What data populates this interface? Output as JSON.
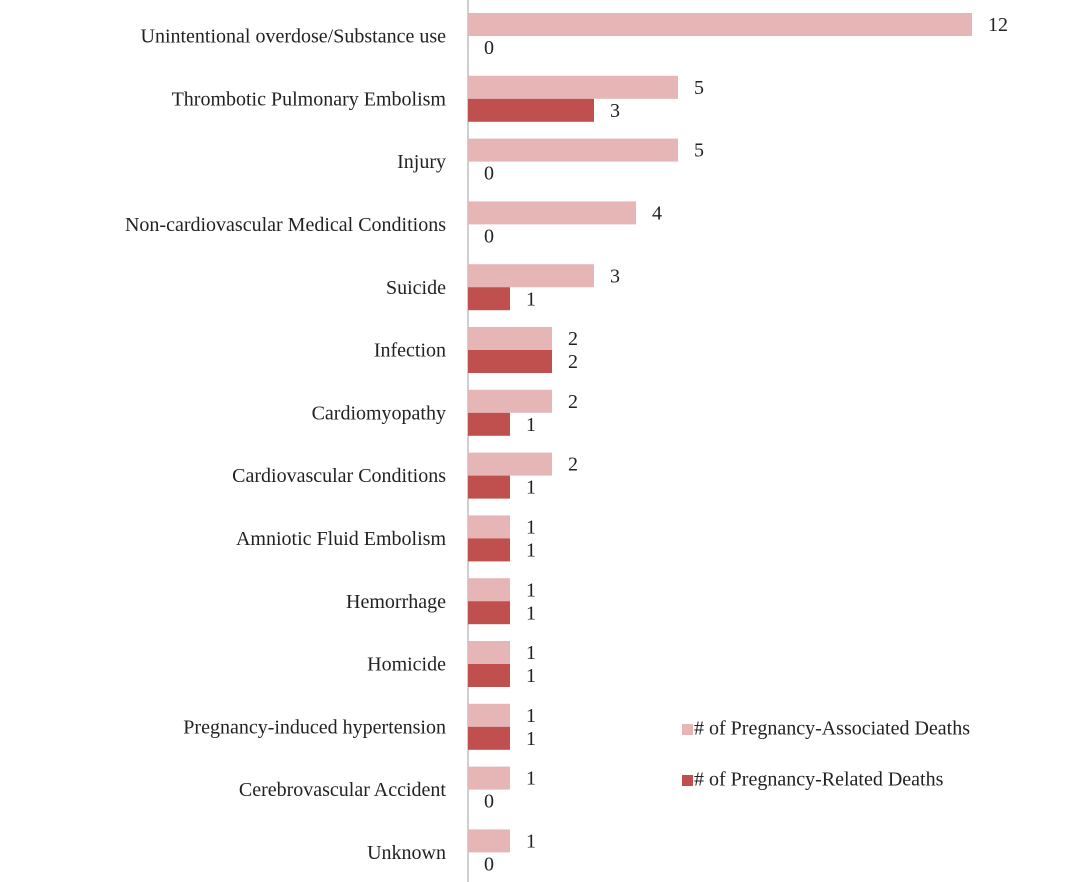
{
  "chart_data": {
    "type": "hbar",
    "categories": [
      "Unintentional overdose/Substance use",
      "Thrombotic Pulmonary Embolism",
      "Injury",
      "Non-cardiovascular Medical Conditions",
      "Suicide",
      "Infection",
      "Cardiomyopathy",
      "Cardiovascular Conditions",
      "Amniotic Fluid Embolism",
      "Hemorrhage",
      "Homicide",
      "Pregnancy-induced hypertension",
      "Cerebrovascular Accident",
      "Unknown"
    ],
    "series": [
      {
        "name": "# of Pregnancy-Associated Deaths",
        "color": "#e6b6b7",
        "values": [
          12,
          5,
          5,
          4,
          3,
          2,
          2,
          2,
          1,
          1,
          1,
          1,
          1,
          1
        ]
      },
      {
        "name": "# of Pregnancy-Related Deaths",
        "color": "#c0504d",
        "values": [
          0,
          3,
          0,
          0,
          1,
          2,
          1,
          1,
          1,
          1,
          1,
          1,
          0,
          0
        ]
      }
    ],
    "xlim": [
      0,
      12
    ],
    "legend": "right"
  }
}
